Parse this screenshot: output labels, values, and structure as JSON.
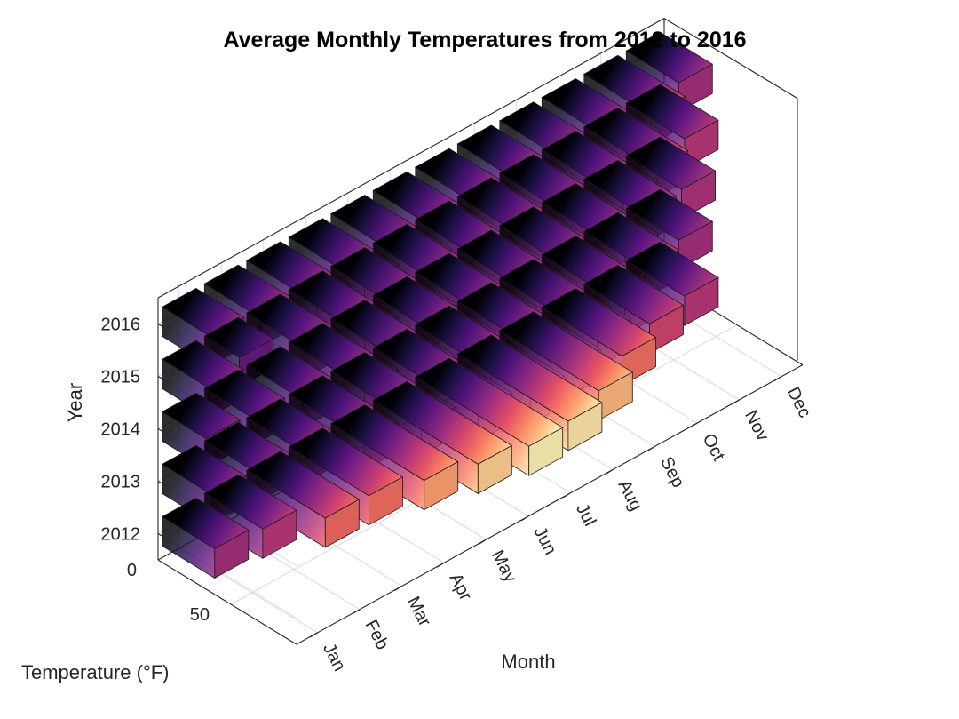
{
  "chart_data": {
    "type": "bar3d",
    "title": "Average Monthly Temperatures from 2012 to 2016",
    "xlabel": "Month",
    "ylabel": "Year",
    "zlabel": "Temperature (°F)",
    "months": [
      "Jan",
      "Feb",
      "Mar",
      "Apr",
      "May",
      "Jun",
      "Jul",
      "Aug",
      "Sep",
      "Oct",
      "Nov",
      "Dec"
    ],
    "years": [
      "2012",
      "2013",
      "2014",
      "2015",
      "2016"
    ],
    "temperature_ticks": [
      "0",
      "50"
    ],
    "colormap": "magma",
    "colormap_stops": [
      "#000004",
      "#1d1147",
      "#51127c",
      "#822681",
      "#b73779",
      "#e75263",
      "#fc8961",
      "#fec287",
      "#fcfdbf"
    ],
    "edge_color": "#1a1a1a",
    "grid": true,
    "series": [
      {
        "name": "2012",
        "values": [
          36,
          40,
          54,
          55,
          64,
          72,
          78,
          76,
          68,
          55,
          45,
          40
        ]
      },
      {
        "name": "2013",
        "values": [
          34,
          36,
          40,
          52,
          62,
          72,
          79,
          75,
          67,
          57,
          42,
          36
        ]
      },
      {
        "name": "2014",
        "values": [
          30,
          32,
          38,
          52,
          62,
          70,
          73,
          74,
          67,
          57,
          40,
          38
        ]
      },
      {
        "name": "2015",
        "values": [
          32,
          24,
          40,
          52,
          63,
          70,
          75,
          75,
          70,
          56,
          48,
          40
        ]
      },
      {
        "name": "2016",
        "values": [
          33,
          38,
          48,
          52,
          60,
          72,
          78,
          78,
          70,
          58,
          46,
          36
        ]
      }
    ]
  }
}
